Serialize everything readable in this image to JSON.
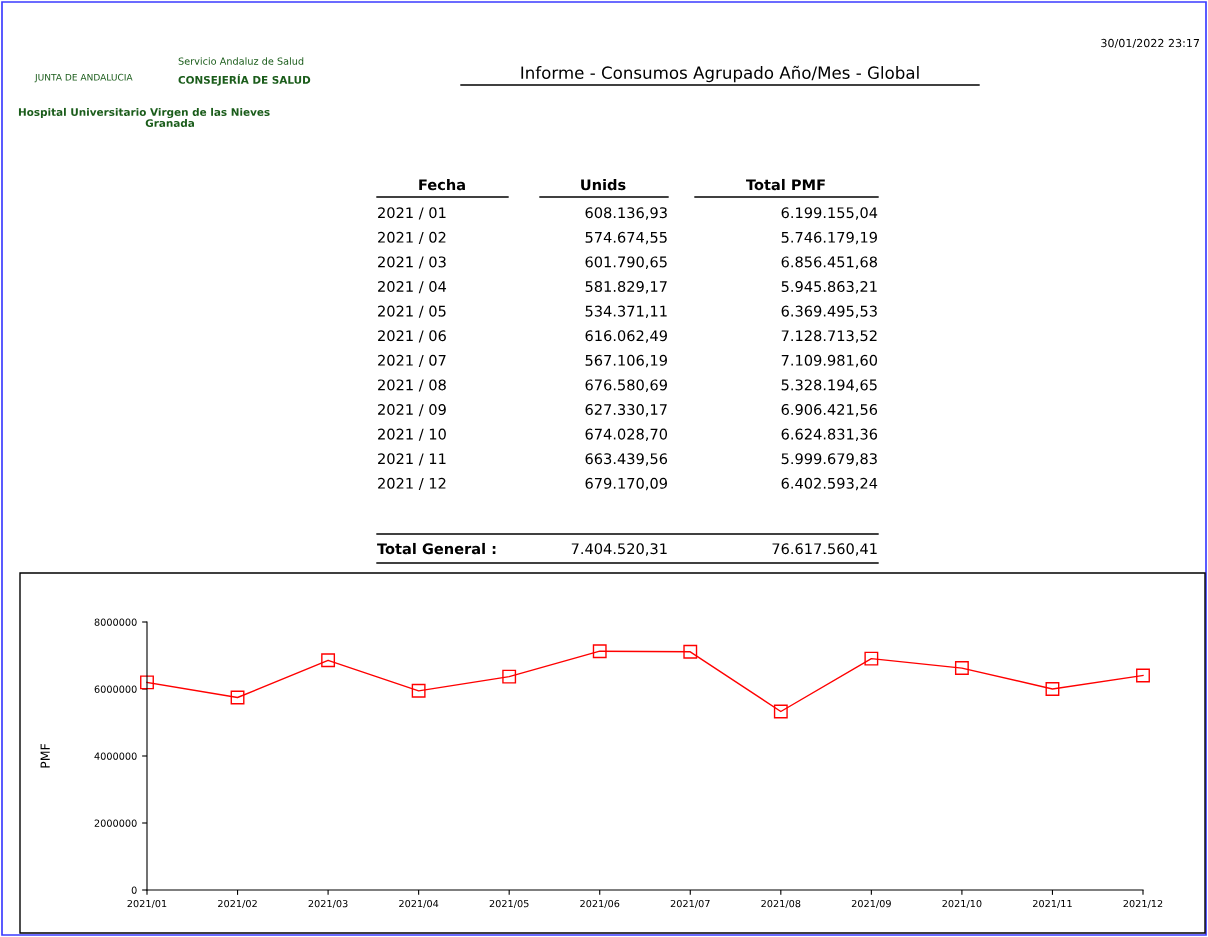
{
  "chart_data": [
    {
      "type": "other",
      "title": "Informe - Consumos Agrupado Año/Mes - Global",
      "annotations": [
        "JUNTA DE ANDALUCIA",
        "Servicio Andaluz de Salud",
        "CONSEJERÍA DE SALUD",
        "Hospital Universitario Virgen de las Nieves",
        "Granada",
        "30/01/2022 23:17",
        "Fecha",
        "Unids",
        "Total PMF",
        "2021 / 01",
        "608.136,93",
        "6.199.155,04",
        "2021 / 02",
        "574.674,55",
        "5.746.179,19",
        "2021 / 03",
        "601.790,65",
        "6.856.451,68",
        "2021 / 04",
        "581.829,17",
        "5.945.863,21",
        "2021 / 05",
        "534.371,11",
        "6.369.495,53",
        "2021 / 06",
        "616.062,49",
        "7.128.713,52",
        "2021 / 07",
        "567.106,19",
        "7.109.981,60",
        "2021 / 08",
        "676.580,69",
        "5.328.194,65",
        "2021 / 09",
        "627.330,17",
        "6.906.421,56",
        "2021 / 10",
        "674.028,70",
        "6.624.831,36",
        "2021 / 11",
        "663.439,56",
        "5.999.679,83",
        "2021 / 12",
        "679.170,09",
        "6.402.593,24",
        "Total General :",
        "7.404.520,31",
        "76.617.560,41"
      ]
    },
    {
      "type": "line",
      "ylabel": "PMF",
      "categories": [
        "2021/01",
        "2021/02",
        "2021/03",
        "2021/04",
        "2021/05",
        "2021/06",
        "2021/07",
        "2021/08",
        "2021/09",
        "2021/10",
        "2021/11",
        "2021/12"
      ],
      "series": [
        {
          "color": "#ff0000",
          "values": [
            6199155.04,
            5746179.19,
            6856451.68,
            5945863.21,
            6369495.53,
            7128713.52,
            7109981.6,
            5328194.65,
            6906421.56,
            6624831.36,
            5999679.83,
            6402593.24
          ]
        }
      ],
      "ylim": [
        0,
        8000000
      ],
      "yticks": [
        0,
        2000000,
        4000000,
        6000000,
        8000000
      ],
      "marker": "square",
      "grid": false,
      "legend": false
    }
  ]
}
